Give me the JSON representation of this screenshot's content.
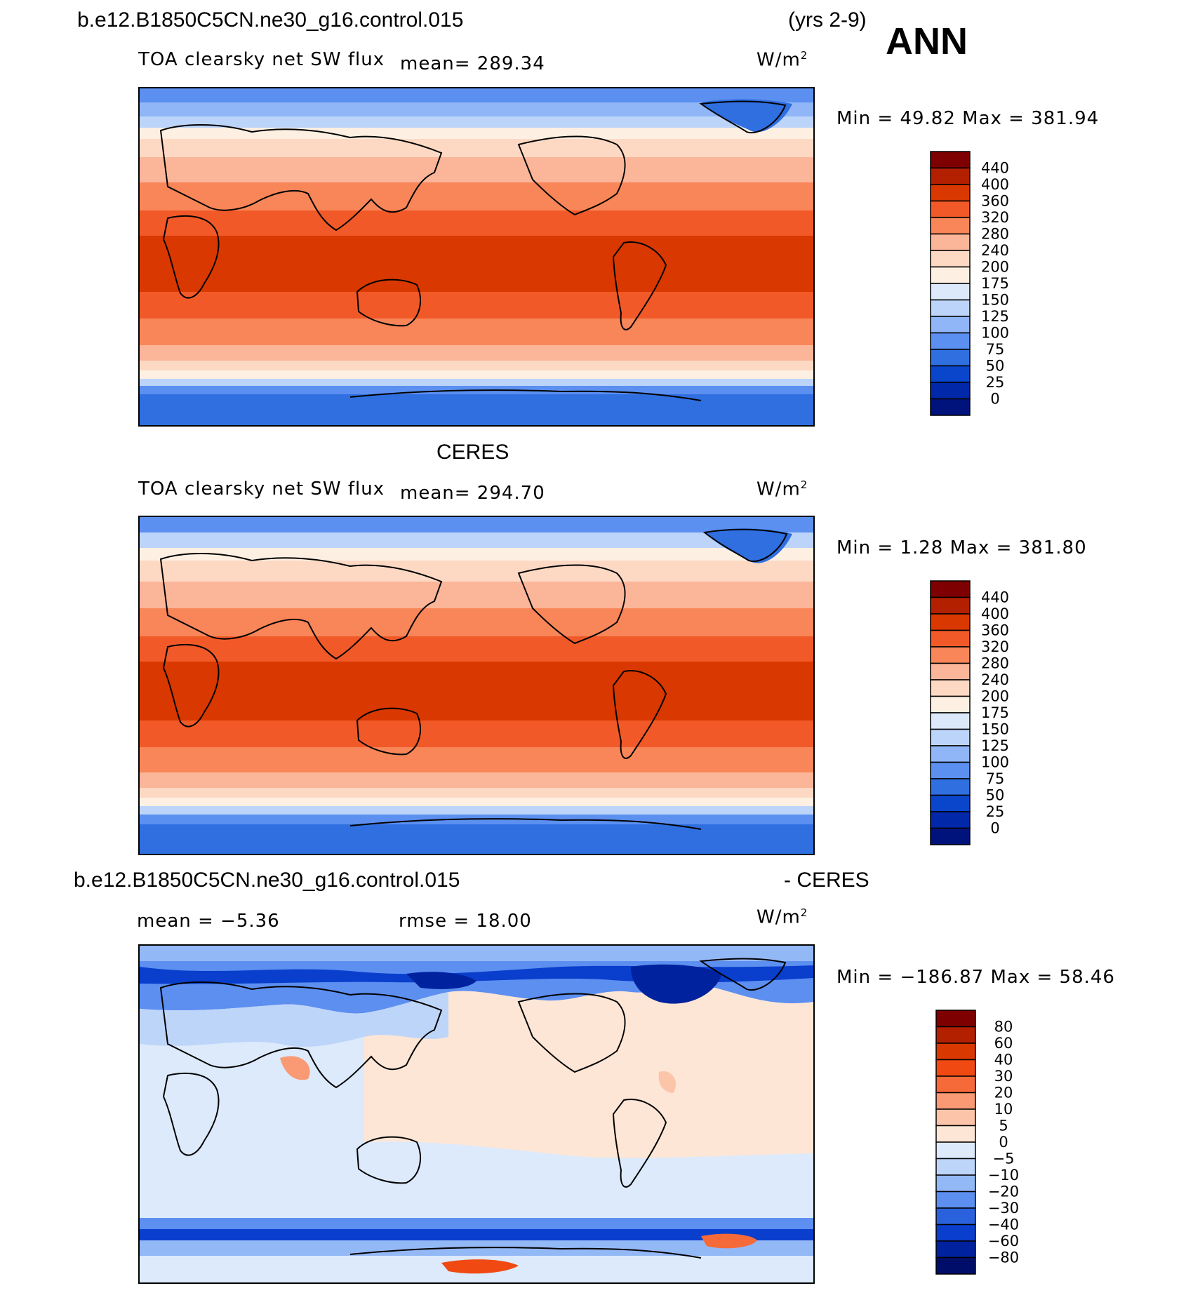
{
  "header": {
    "case_name": "b.e12.B1850C5CN.ne30_g16.control.015",
    "years": "(yrs 2-9)",
    "season": "ANN"
  },
  "panels": [
    {
      "variable": "TOA clearsky net SW flux",
      "mean_text": "mean= 289.34",
      "units": "W/m",
      "units_exp": "2",
      "minmax": "Min =   49.82 Max  = 381.94",
      "levels": [
        "440",
        "400",
        "360",
        "320",
        "280",
        "240",
        "200",
        "175",
        "150",
        "125",
        "100",
        "75",
        "50",
        "25",
        "0"
      ]
    },
    {
      "title": "CERES",
      "variable": "TOA clearsky net SW flux",
      "mean_text": "mean= 294.70",
      "units": "W/m",
      "units_exp": "2",
      "minmax": "Min =    1.28 Max  = 381.80",
      "levels": [
        "440",
        "400",
        "360",
        "320",
        "280",
        "240",
        "200",
        "175",
        "150",
        "125",
        "100",
        "75",
        "50",
        "25",
        "0"
      ]
    },
    {
      "title_left": "b.e12.B1850C5CN.ne30_g16.control.015",
      "title_right": "- CERES",
      "mean_text": "mean =   −5.36",
      "rmse_text": "rmse =   18.00",
      "units": "W/m",
      "units_exp": "2",
      "minmax": "Min = −186.87 Max =   58.46",
      "levels": [
        "80",
        "60",
        "40",
        "30",
        "20",
        "10",
        "5",
        "0",
        "−5",
        "−10",
        "−20",
        "−30",
        "−40",
        "−60",
        "−80"
      ]
    }
  ],
  "colors": {
    "abs_scale": [
      "#7f0000",
      "#b22000",
      "#d93800",
      "#f15a28",
      "#f88659",
      "#fbb599",
      "#fdd9c4",
      "#fdf0e2",
      "#dbe9fb",
      "#bcd4fa",
      "#90b6f7",
      "#5b8ff0",
      "#2f6fe0",
      "#0a46cc",
      "#0028a8",
      "#00137c"
    ],
    "diff_scale": [
      "#7f0000",
      "#b22000",
      "#d93800",
      "#f04a12",
      "#f56a38",
      "#f99a74",
      "#fcc4a8",
      "#fde6d6",
      "#dceafc",
      "#bed5fa",
      "#93b8f6",
      "#5c8ff0",
      "#2a62dd",
      "#0a3ecc",
      "#00229e",
      "#000e6a"
    ]
  },
  "chart_data": [
    {
      "type": "heatmap",
      "title": "b.e12.B1850C5CN.ne30_g16.control.015 TOA clearsky net SW flux",
      "units": "W/m2",
      "mean": 289.34,
      "min": 49.82,
      "max": 381.94,
      "contour_levels": [
        0,
        25,
        50,
        75,
        100,
        125,
        150,
        175,
        200,
        240,
        280,
        320,
        360,
        400,
        440
      ]
    },
    {
      "type": "heatmap",
      "title": "CERES TOA clearsky net SW flux",
      "units": "W/m2",
      "mean": 294.7,
      "min": 1.28,
      "max": 381.8,
      "contour_levels": [
        0,
        25,
        50,
        75,
        100,
        125,
        150,
        175,
        200,
        240,
        280,
        320,
        360,
        400,
        440
      ]
    },
    {
      "type": "heatmap",
      "title": "b.e12.B1850C5CN.ne30_g16.control.015 - CERES",
      "units": "W/m2",
      "mean": -5.36,
      "rmse": 18.0,
      "min": -186.87,
      "max": 58.46,
      "contour_levels": [
        -80,
        -60,
        -40,
        -30,
        -20,
        -10,
        -5,
        0,
        5,
        10,
        20,
        30,
        40,
        60,
        80
      ]
    }
  ]
}
